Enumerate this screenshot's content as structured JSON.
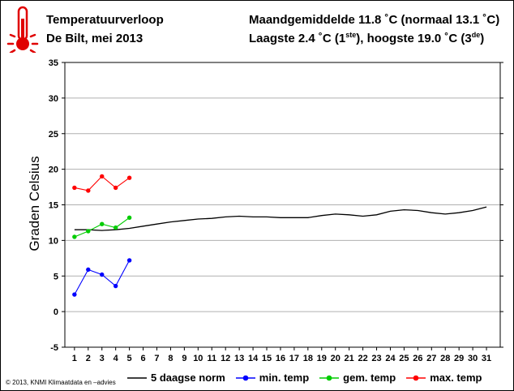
{
  "header": {
    "title": "Temperatuurverloop",
    "subtitle": "De Bilt, mei 2013",
    "right_line1": "Maandgemiddelde 11.8 ˚C (normaal 13.1 ˚C)",
    "right_line2_a": "Laagste 2.4 ˚C (1",
    "right_line2_sup1": "ste",
    "right_line2_b": "), hoogste 19.0 ˚C (3",
    "right_line2_sup2": "de",
    "right_line2_c": ")"
  },
  "icon": "thermometer-icon",
  "copyright": "© 2013, KNMI Klimaatdata en –advies",
  "chart_data": {
    "type": "line",
    "ylabel": "Graden Celsius",
    "xlabel": "",
    "ylim": [
      -5,
      35
    ],
    "yticks": [
      -5,
      0,
      5,
      10,
      15,
      20,
      25,
      30,
      35
    ],
    "xticks": [
      1,
      2,
      3,
      4,
      5,
      6,
      7,
      8,
      9,
      10,
      11,
      12,
      13,
      14,
      15,
      16,
      17,
      18,
      19,
      20,
      21,
      22,
      23,
      24,
      25,
      26,
      27,
      28,
      29,
      30,
      31
    ],
    "grid": true,
    "legend_position": "bottom",
    "series": [
      {
        "name": "5 daagse norm",
        "color": "#000000",
        "x": [
          1,
          2,
          3,
          4,
          5,
          6,
          7,
          8,
          9,
          10,
          11,
          12,
          13,
          14,
          15,
          16,
          17,
          18,
          19,
          20,
          21,
          22,
          23,
          24,
          25,
          26,
          27,
          28,
          29,
          30,
          31
        ],
        "values": [
          11.5,
          11.5,
          11.4,
          11.5,
          11.7,
          12.0,
          12.3,
          12.6,
          12.8,
          13.0,
          13.1,
          13.3,
          13.4,
          13.3,
          13.3,
          13.2,
          13.2,
          13.2,
          13.5,
          13.7,
          13.6,
          13.4,
          13.6,
          14.1,
          14.3,
          14.2,
          13.9,
          13.7,
          13.9,
          14.2,
          14.7
        ]
      },
      {
        "name": "min. temp",
        "color": "#0000ff",
        "x": [
          1,
          2,
          3,
          4,
          5
        ],
        "values": [
          2.4,
          5.9,
          5.2,
          3.6,
          7.2
        ]
      },
      {
        "name": "gem. temp",
        "color": "#00cc00",
        "x": [
          1,
          2,
          3,
          4,
          5
        ],
        "values": [
          10.5,
          11.3,
          12.3,
          11.8,
          13.2
        ]
      },
      {
        "name": "max. temp",
        "color": "#ff0000",
        "x": [
          1,
          2,
          3,
          4,
          5
        ],
        "values": [
          17.4,
          17.0,
          19.0,
          17.4,
          18.8
        ]
      }
    ]
  }
}
